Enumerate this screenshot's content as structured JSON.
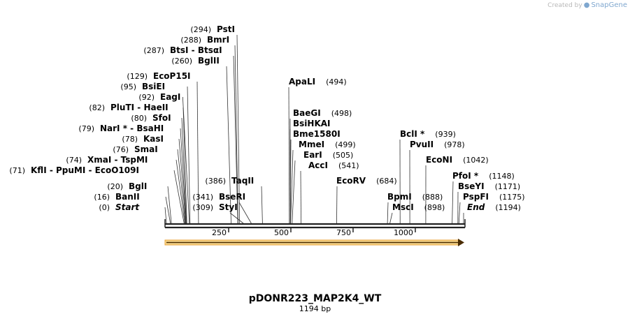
{
  "watermark": {
    "prefix": "Created by",
    "brand": "SnapGene"
  },
  "plasmid": {
    "name": "pDONR223_MAP2K4_WT",
    "length_label": "1194 bp",
    "length": 1194
  },
  "axis": {
    "ticks": [
      250,
      500,
      750,
      1000
    ]
  },
  "colors": {
    "backbone": "#222222",
    "feature_fill": "#f6d58a",
    "feature_stroke": "#e8a33a",
    "feature_arrow": "#4a2c00"
  },
  "sites": {
    "left": [
      {
        "pos": "(294)",
        "name": "PstI",
        "p": 294
      },
      {
        "pos": "(288)",
        "name": "BmrI",
        "p": 288
      },
      {
        "pos": "(287)",
        "name": "BtsI  -  BtsαI",
        "p": 287
      },
      {
        "pos": "(260)",
        "name": "BglII",
        "p": 260
      },
      {
        "pos": "(129)",
        "name": "EcoP15I",
        "p": 129
      },
      {
        "pos": "(95)",
        "name": "BsiEI",
        "p": 95
      },
      {
        "pos": "(92)",
        "name": "EagI",
        "p": 92
      },
      {
        "pos": "(82)",
        "name": "PluTI  -  HaeII",
        "p": 82
      },
      {
        "pos": "(80)",
        "name": "SfoI",
        "p": 80
      },
      {
        "pos": "(79)",
        "name": "NarI *  -  BsaHI",
        "p": 79
      },
      {
        "pos": "(78)",
        "name": "KasI",
        "p": 78
      },
      {
        "pos": "(76)",
        "name": "SmaI",
        "p": 76
      },
      {
        "pos": "(74)",
        "name": "XmaI  -  TspMI",
        "p": 74
      },
      {
        "pos": "(71)",
        "name": "KflI  -  PpuMI  -  EcoO109I",
        "p": 71
      },
      {
        "pos": "(20)",
        "name": "BglI",
        "p": 20
      },
      {
        "pos": "(16)",
        "name": "BanII",
        "p": 16
      },
      {
        "pos": "(0)",
        "name": "Start",
        "p": 0
      }
    ],
    "mid_left": [
      {
        "pos": "(386)",
        "name": "TaqII",
        "p": 386
      },
      {
        "pos": "(341)",
        "name": "BseRI",
        "p": 341
      },
      {
        "pos": "(309)",
        "name": "StyI",
        "p": 309
      }
    ],
    "center": [
      {
        "pos": "(494)",
        "name": "ApaLI",
        "p": 494
      },
      {
        "pos": "(498)",
        "name": "BaeGI",
        "p": 498
      },
      {
        "pos": "",
        "name": "BsiHKAI",
        "p": 498
      },
      {
        "pos": "",
        "name": "Bme1580I",
        "p": 498
      },
      {
        "pos": "(499)",
        "name": "MmeI",
        "p": 499
      },
      {
        "pos": "(505)",
        "name": "EarI",
        "p": 505
      },
      {
        "pos": "(541)",
        "name": "AccI",
        "p": 541
      },
      {
        "pos": "(684)",
        "name": "EcoRV",
        "p": 684
      }
    ],
    "right": [
      {
        "pos": "(939)",
        "name": "BclI *",
        "p": 939
      },
      {
        "pos": "(978)",
        "name": "PvuII",
        "p": 978
      },
      {
        "pos": "(1042)",
        "name": "EcoNI",
        "p": 1042
      },
      {
        "pos": "(1148)",
        "name": "PfoI *",
        "p": 1148
      },
      {
        "pos": "(1171)",
        "name": "BseYI",
        "p": 1171
      },
      {
        "pos": "(1175)",
        "name": "PspFI",
        "p": 1175
      },
      {
        "pos": "(1194)",
        "name": "End",
        "p": 1194
      },
      {
        "pos": "(888)",
        "name": "BpmI",
        "p": 888
      },
      {
        "pos": "(898)",
        "name": "MscI",
        "p": 898
      }
    ]
  }
}
